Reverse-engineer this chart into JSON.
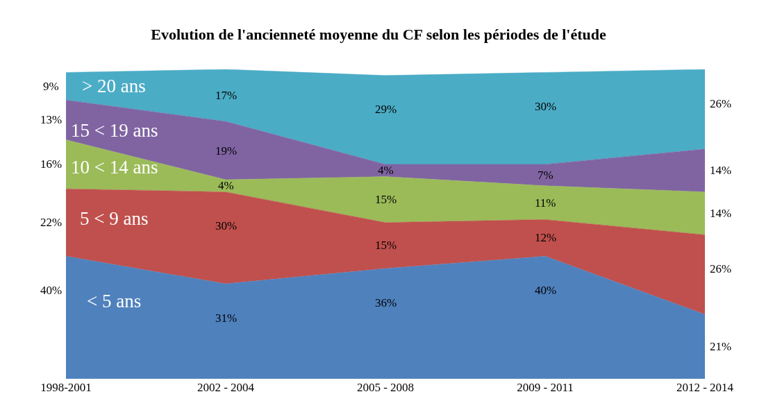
{
  "chart_data": {
    "type": "area",
    "title": "Evolution de l'ancienneté moyenne du CF selon les périodes de l'étude",
    "stacked": true,
    "legend": false,
    "grid": false,
    "categories": [
      "1998-2001",
      "2002 - 2004",
      "2005 - 2008",
      "2009 - 2011",
      "2012 - 2014"
    ],
    "series": [
      {
        "name": "< 5 ans",
        "color": "#4f81bd",
        "values": [
          40,
          31,
          36,
          40,
          21
        ],
        "value_labels": [
          "40%",
          "31%",
          "36%",
          "40%",
          "21%"
        ]
      },
      {
        "name": "5 < 9 ans",
        "color": "#c0504d",
        "values": [
          22,
          30,
          15,
          12,
          26
        ],
        "value_labels": [
          "22%",
          "30%",
          "15%",
          "12%",
          "26%"
        ]
      },
      {
        "name": "10 < 14 ans",
        "color": "#9bbb59",
        "values": [
          16,
          4,
          15,
          11,
          14
        ],
        "value_labels": [
          "16%",
          "4%",
          "15%",
          "11%",
          "14%"
        ]
      },
      {
        "name": "15 < 19 ans",
        "color": "#8064a2",
        "values": [
          13,
          19,
          4,
          7,
          14
        ],
        "value_labels": [
          "13%",
          "19%",
          "4%",
          "7%",
          "14%"
        ]
      },
      {
        "name": "> 20 ans",
        "color": "#4bacc6",
        "values": [
          9,
          17,
          29,
          30,
          26
        ],
        "value_labels": [
          "9%",
          "17%",
          "29%",
          "30%",
          "26%"
        ]
      }
    ]
  }
}
